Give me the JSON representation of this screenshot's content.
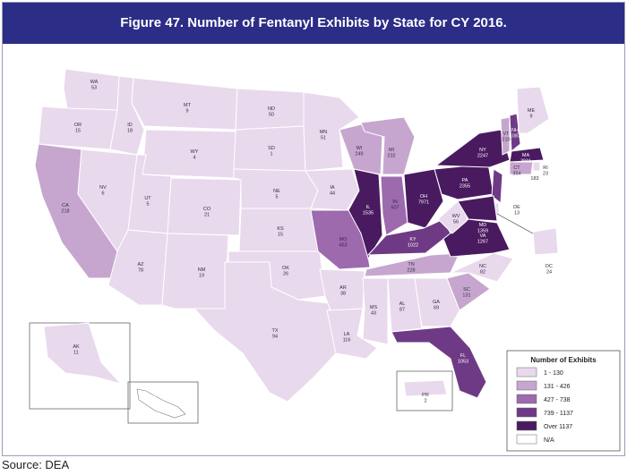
{
  "title": "Figure 47. Number of Fentanyl Exhibits by State for CY 2016.",
  "source": "Source: DEA",
  "legend": {
    "title": "Number of Exhibits",
    "items": [
      {
        "label": "1 - 130",
        "color": "#e8d9ec"
      },
      {
        "label": "131 - 426",
        "color": "#c6a6cf"
      },
      {
        "label": "427 - 738",
        "color": "#9d6aae"
      },
      {
        "label": "739 - 1137",
        "color": "#6f3a85"
      },
      {
        "label": "Over 1137",
        "color": "#4a1a60"
      },
      {
        "label": "N/A",
        "color": "#ffffff"
      }
    ]
  },
  "colors": {
    "border": "#ffffff",
    "text_dark": "#3a2a45",
    "text_light": "#ffffff",
    "title_bg": "#2b2d86"
  },
  "states": [
    {
      "abbr": "WA",
      "value": "53",
      "bin": 0
    },
    {
      "abbr": "OR",
      "value": "15",
      "bin": 0
    },
    {
      "abbr": "CA",
      "value": "218",
      "bin": 1
    },
    {
      "abbr": "ID",
      "value": "18",
      "bin": 0
    },
    {
      "abbr": "NV",
      "value": "6",
      "bin": 0
    },
    {
      "abbr": "MT",
      "value": "9",
      "bin": 0
    },
    {
      "abbr": "WY",
      "value": "4",
      "bin": 0
    },
    {
      "abbr": "UT",
      "value": "5",
      "bin": 0
    },
    {
      "abbr": "AZ",
      "value": "78",
      "bin": 0
    },
    {
      "abbr": "CO",
      "value": "21",
      "bin": 0
    },
    {
      "abbr": "NM",
      "value": "19",
      "bin": 0
    },
    {
      "abbr": "ND",
      "value": "50",
      "bin": 0
    },
    {
      "abbr": "SD",
      "value": "1",
      "bin": 0
    },
    {
      "abbr": "NE",
      "value": "5",
      "bin": 0
    },
    {
      "abbr": "KS",
      "value": "15",
      "bin": 0
    },
    {
      "abbr": "OK",
      "value": "26",
      "bin": 0
    },
    {
      "abbr": "TX",
      "value": "94",
      "bin": 0
    },
    {
      "abbr": "MN",
      "value": "51",
      "bin": 0
    },
    {
      "abbr": "IA",
      "value": "44",
      "bin": 0
    },
    {
      "abbr": "MO",
      "value": "453",
      "bin": 2
    },
    {
      "abbr": "AR",
      "value": "38",
      "bin": 0
    },
    {
      "abbr": "LA",
      "value": "116",
      "bin": 0
    },
    {
      "abbr": "WI",
      "value": "249",
      "bin": 1
    },
    {
      "abbr": "IL",
      "value": "1535",
      "bin": 4
    },
    {
      "abbr": "MI",
      "value": "232",
      "bin": 1
    },
    {
      "abbr": "IN",
      "value": "507",
      "bin": 2
    },
    {
      "abbr": "OH",
      "value": "7971",
      "bin": 4
    },
    {
      "abbr": "KY",
      "value": "1022",
      "bin": 3
    },
    {
      "abbr": "TN",
      "value": "228",
      "bin": 1
    },
    {
      "abbr": "MS",
      "value": "43",
      "bin": 0
    },
    {
      "abbr": "AL",
      "value": "87",
      "bin": 0
    },
    {
      "abbr": "GA",
      "value": "69",
      "bin": 0
    },
    {
      "abbr": "FL",
      "value": "1053",
      "bin": 3
    },
    {
      "abbr": "SC",
      "value": "131",
      "bin": 1
    },
    {
      "abbr": "NC",
      "value": "82",
      "bin": 0
    },
    {
      "abbr": "VA",
      "value": "1267",
      "bin": 4
    },
    {
      "abbr": "WV",
      "value": "56",
      "bin": 0
    },
    {
      "abbr": "PA",
      "value": "2355",
      "bin": 4
    },
    {
      "abbr": "NY",
      "value": "2247",
      "bin": 4
    },
    {
      "abbr": "VT",
      "value": "210",
      "bin": 1
    },
    {
      "abbr": "NH",
      "value": "1087",
      "bin": 3
    },
    {
      "abbr": "ME",
      "value": "9",
      "bin": 0
    },
    {
      "abbr": "MA",
      "value": "3911",
      "bin": 4
    },
    {
      "abbr": "RI",
      "value": "23",
      "bin": 0
    },
    {
      "abbr": "CT",
      "value": "354",
      "bin": 1
    },
    {
      "abbr": "NJ",
      "value": "1120",
      "bin": 3
    },
    {
      "abbr": "DE",
      "value": "13",
      "bin": 0
    },
    {
      "abbr": "MD",
      "value": "1359",
      "bin": 4
    },
    {
      "abbr": "DC",
      "value": "24",
      "bin": 0
    },
    {
      "abbr": "AK",
      "value": "11",
      "bin": 0
    },
    {
      "abbr": "HI",
      "value": "NA",
      "bin": 5
    },
    {
      "abbr": "PR",
      "value": "2",
      "bin": 0
    }
  ],
  "extra_labels": [
    {
      "text": "183"
    }
  ]
}
